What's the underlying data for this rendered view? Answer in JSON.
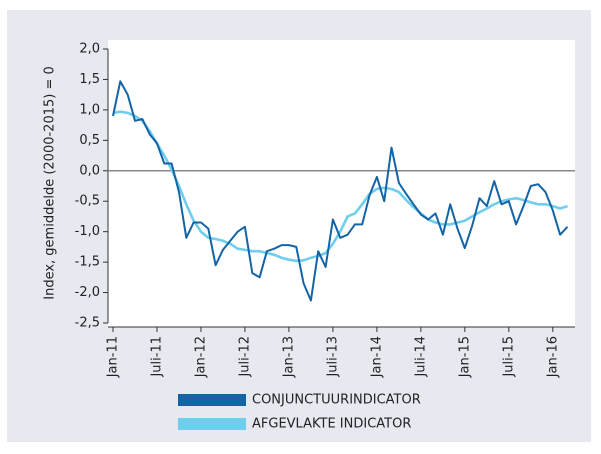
{
  "chart_data": {
    "type": "line",
    "ylabel": "Index, gemiddelde (2000-2015) = 0",
    "categories": [
      "Jan-11",
      null,
      null,
      null,
      null,
      null,
      "Juli-11",
      null,
      null,
      null,
      null,
      null,
      "Jan-12",
      null,
      null,
      null,
      null,
      null,
      "Juli-12",
      null,
      null,
      null,
      null,
      null,
      "Jan-13",
      null,
      null,
      null,
      null,
      null,
      "Juli-13",
      null,
      null,
      null,
      null,
      null,
      "Jan-14",
      null,
      null,
      null,
      null,
      null,
      "Juli-14",
      null,
      null,
      null,
      null,
      null,
      "Jan-15",
      null,
      null,
      null,
      null,
      null,
      "Juli-15",
      null,
      null,
      null,
      null,
      null,
      "Jan-16",
      null,
      null
    ],
    "series": [
      {
        "name": "CONJUNCTUURINDICATOR",
        "color": "#1464a5",
        "values": [
          0.9,
          1.47,
          1.25,
          0.82,
          0.85,
          0.6,
          0.45,
          0.12,
          0.12,
          -0.35,
          -1.1,
          -0.85,
          -0.85,
          -0.95,
          -1.55,
          -1.3,
          -1.15,
          -1.0,
          -0.92,
          -1.68,
          -1.75,
          -1.32,
          -1.28,
          -1.22,
          -1.22,
          -1.25,
          -1.85,
          -2.13,
          -1.32,
          -1.58,
          -0.8,
          -1.1,
          -1.05,
          -0.88,
          -0.88,
          -0.4,
          -0.1,
          -0.5,
          0.38,
          -0.2,
          -0.38,
          -0.55,
          -0.72,
          -0.8,
          -0.7,
          -1.05,
          -0.55,
          -0.95,
          -1.27,
          -0.9,
          -0.45,
          -0.58,
          -0.17,
          -0.55,
          -0.5,
          -0.88,
          -0.58,
          -0.25,
          -0.22,
          -0.35,
          -0.65,
          -1.05,
          -0.92
        ]
      },
      {
        "name": "AFGEVLAKTE INDICATOR",
        "color": "#6fcdee",
        "values": [
          0.95,
          0.97,
          0.95,
          0.9,
          0.82,
          0.65,
          0.45,
          0.25,
          0.02,
          -0.25,
          -0.55,
          -0.82,
          -1.0,
          -1.1,
          -1.12,
          -1.15,
          -1.2,
          -1.28,
          -1.3,
          -1.32,
          -1.32,
          -1.35,
          -1.38,
          -1.43,
          -1.46,
          -1.48,
          -1.47,
          -1.43,
          -1.4,
          -1.35,
          -1.2,
          -1.0,
          -0.75,
          -0.7,
          -0.55,
          -0.38,
          -0.3,
          -0.28,
          -0.3,
          -0.35,
          -0.48,
          -0.6,
          -0.7,
          -0.8,
          -0.85,
          -0.88,
          -0.88,
          -0.85,
          -0.82,
          -0.75,
          -0.68,
          -0.62,
          -0.55,
          -0.5,
          -0.47,
          -0.45,
          -0.48,
          -0.52,
          -0.55,
          -0.55,
          -0.58,
          -0.62,
          -0.58
        ]
      }
    ],
    "ylim": [
      -2.5,
      2.0
    ],
    "yticks": [
      {
        "value": -2.5,
        "label": "-2,5"
      },
      {
        "value": -2.0,
        "label": "-2,0"
      },
      {
        "value": -1.5,
        "label": "-1,5"
      },
      {
        "value": -1.0,
        "label": "-1,0"
      },
      {
        "value": -0.5,
        "label": "-0,5"
      },
      {
        "value": 0.0,
        "label": "0,0"
      },
      {
        "value": 0.5,
        "label": "0,5"
      },
      {
        "value": 1.0,
        "label": "1,0"
      },
      {
        "value": 1.5,
        "label": "1,5"
      },
      {
        "value": 2.0,
        "label": "2,0"
      }
    ],
    "zero_line": true
  }
}
